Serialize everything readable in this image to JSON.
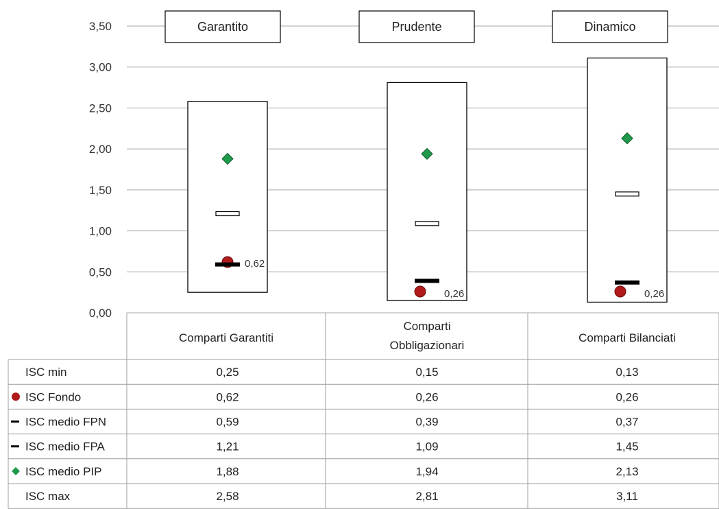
{
  "chart_data": {
    "type": "table",
    "chart_kind": "range-with-markers",
    "ylim": [
      0,
      3.5
    ],
    "y_ticks": [
      "0,00",
      "0,50",
      "1,00",
      "1,50",
      "2,00",
      "2,50",
      "3,00",
      "3,50"
    ],
    "grid": true,
    "categories": [
      "Comparti Garantiti",
      "Comparti Obbligazionari",
      "Comparti Bilanciati"
    ],
    "category_lines": [
      [
        "Comparti Garantiti"
      ],
      [
        "Comparti",
        "Obbligazionari"
      ],
      [
        "Comparti Bilanciati"
      ]
    ],
    "category_titles": [
      "Garantito",
      "Prudente",
      "Dinamico"
    ],
    "series": [
      {
        "name": "ISC min",
        "marker": "none",
        "values": [
          0.25,
          0.15,
          0.13
        ],
        "labels": [
          "0,25",
          "0,15",
          "0,13"
        ]
      },
      {
        "name": "ISC Fondo",
        "marker": "circle",
        "color": "#b01a1a",
        "values": [
          0.62,
          0.26,
          0.26
        ],
        "labels": [
          "0,62",
          "0,26",
          "0,26"
        ]
      },
      {
        "name": "ISC medio FPN",
        "marker": "dash-black",
        "color": "#000000",
        "values": [
          0.59,
          0.39,
          0.37
        ],
        "labels": [
          "0,59",
          "0,39",
          "0,37"
        ]
      },
      {
        "name": "ISC medio FPA",
        "marker": "dash-white",
        "color": "#ffffff",
        "values": [
          1.21,
          1.09,
          1.45
        ],
        "labels": [
          "1,21",
          "1,09",
          "1,45"
        ]
      },
      {
        "name": "ISC medio PIP",
        "marker": "diamond",
        "color": "#1f9a4a",
        "values": [
          1.88,
          1.94,
          2.13
        ],
        "labels": [
          "1,88",
          "1,94",
          "2,13"
        ]
      },
      {
        "name": "ISC max",
        "marker": "none",
        "values": [
          2.58,
          2.81,
          3.11
        ],
        "labels": [
          "2,58",
          "2,81",
          "3,11"
        ]
      }
    ],
    "fondo_labels": [
      "0,62",
      "0,26",
      "0,26"
    ]
  }
}
